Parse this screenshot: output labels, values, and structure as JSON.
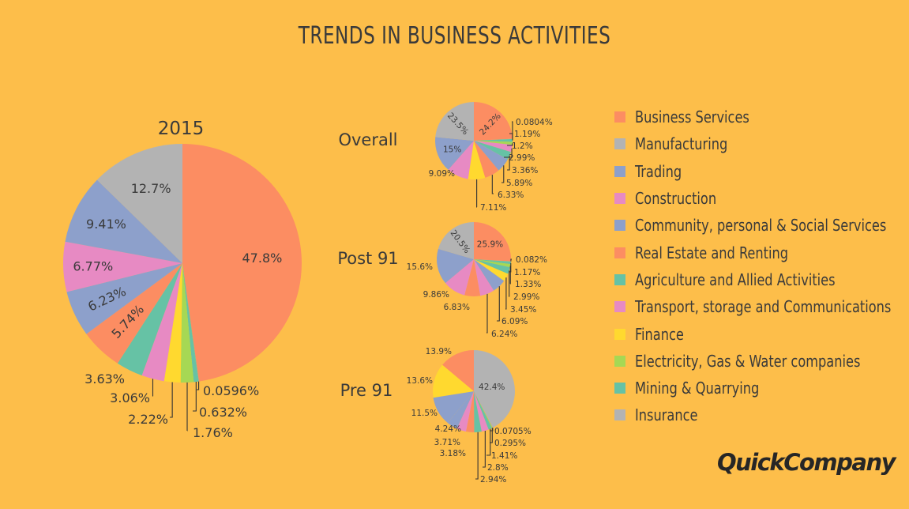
{
  "title": "TRENDS IN BUSINESS ACTIVITIES",
  "brand": "QuickCompany",
  "legend": [
    {
      "label": "Business Services",
      "color": "#FC8D62"
    },
    {
      "label": "Manufacturing",
      "color": "#B3B3B3"
    },
    {
      "label": "Trading",
      "color": "#8DA0CB"
    },
    {
      "label": "Construction",
      "color": "#E78AC3"
    },
    {
      "label": "Community, personal & Social Services",
      "color": "#8DA0CB"
    },
    {
      "label": "Real Estate and Renting",
      "color": "#FC8D62"
    },
    {
      "label": "Agriculture and Allied Activities",
      "color": "#66C2A5"
    },
    {
      "label": "Transport, storage and Communications",
      "color": "#E78AC3"
    },
    {
      "label": "Finance",
      "color": "#FFD92F"
    },
    {
      "label": "Electricity, Gas & Water companies",
      "color": "#A6D854"
    },
    {
      "label": "Mining & Quarrying",
      "color": "#66C2A5"
    },
    {
      "label": "Insurance",
      "color": "#B3B3B3"
    }
  ],
  "chart_data": [
    {
      "type": "pie",
      "title": "2015",
      "slices": [
        {
          "value": 47.8,
          "label": "47.8%",
          "color": "#FC8D62"
        },
        {
          "value": 0.0596,
          "label": "0.0596%",
          "color": "#66C2A5"
        },
        {
          "value": 0.632,
          "label": "0.632%",
          "color": "#66C2A5"
        },
        {
          "value": 1.76,
          "label": "1.76%",
          "color": "#A6D854"
        },
        {
          "value": 2.22,
          "label": "2.22%",
          "color": "#FFD92F"
        },
        {
          "value": 3.06,
          "label": "3.06%",
          "color": "#E78AC3"
        },
        {
          "value": 3.63,
          "label": "3.63%",
          "color": "#66C2A5"
        },
        {
          "value": 5.74,
          "label": "5.74%",
          "color": "#FC8D62"
        },
        {
          "value": 6.23,
          "label": "6.23%",
          "color": "#8DA0CB"
        },
        {
          "value": 6.77,
          "label": "6.77%",
          "color": "#E78AC3"
        },
        {
          "value": 9.41,
          "label": "9.41%",
          "color": "#8DA0CB"
        },
        {
          "value": 12.7,
          "label": "12.7%",
          "color": "#B3B3B3"
        }
      ]
    },
    {
      "type": "pie",
      "title": "Overall",
      "slices": [
        {
          "value": 24.2,
          "label": "24.2%",
          "color": "#FC8D62"
        },
        {
          "value": 0.0804,
          "label": "0.0804%",
          "color": "#B3B3B3"
        },
        {
          "value": 1.19,
          "label": "1.19%",
          "color": "#66C2A5"
        },
        {
          "value": 1.2,
          "label": "1.2%",
          "color": "#A6D854"
        },
        {
          "value": 2.99,
          "label": "2.99%",
          "color": "#E78AC3"
        },
        {
          "value": 3.36,
          "label": "3.36%",
          "color": "#66C2A5"
        },
        {
          "value": 5.89,
          "label": "5.89%",
          "color": "#8DA0CB"
        },
        {
          "value": 6.33,
          "label": "6.33%",
          "color": "#FC8D62"
        },
        {
          "value": 7.11,
          "label": "7.11%",
          "color": "#FFD92F"
        },
        {
          "value": 9.09,
          "label": "9.09%",
          "color": "#E78AC3"
        },
        {
          "value": 15,
          "label": "15%",
          "color": "#8DA0CB"
        },
        {
          "value": 23.5,
          "label": "23.5%",
          "color": "#B3B3B3"
        }
      ]
    },
    {
      "type": "pie",
      "title": "Post 91",
      "slices": [
        {
          "value": 25.9,
          "label": "25.9%",
          "color": "#FC8D62"
        },
        {
          "value": 0.082,
          "label": "0.082%",
          "color": "#B3B3B3"
        },
        {
          "value": 1.17,
          "label": "1.17%",
          "color": "#66C2A5"
        },
        {
          "value": 1.33,
          "label": "1.33%",
          "color": "#A6D854"
        },
        {
          "value": 2.99,
          "label": "2.99%",
          "color": "#66C2A5"
        },
        {
          "value": 3.45,
          "label": "3.45%",
          "color": "#FFD92F"
        },
        {
          "value": 6.09,
          "label": "6.09%",
          "color": "#8DA0CB"
        },
        {
          "value": 6.24,
          "label": "6.24%",
          "color": "#E78AC3"
        },
        {
          "value": 6.83,
          "label": "6.83%",
          "color": "#FC8D62"
        },
        {
          "value": 9.86,
          "label": "9.86%",
          "color": "#E78AC3"
        },
        {
          "value": 15.6,
          "label": "15.6%",
          "color": "#8DA0CB"
        },
        {
          "value": 20.5,
          "label": "20.5%",
          "color": "#B3B3B3"
        }
      ]
    },
    {
      "type": "pie",
      "title": "Pre 91",
      "slices": [
        {
          "value": 42.4,
          "label": "42.4%",
          "color": "#B3B3B3"
        },
        {
          "value": 0.0705,
          "label": "0.0705%",
          "color": "#FC8D62"
        },
        {
          "value": 0.295,
          "label": "0.295%",
          "color": "#A6D854"
        },
        {
          "value": 1.41,
          "label": "1.41%",
          "color": "#66C2A5"
        },
        {
          "value": 2.8,
          "label": "2.8%",
          "color": "#E78AC3"
        },
        {
          "value": 2.94,
          "label": "2.94%",
          "color": "#66C2A5"
        },
        {
          "value": 3.18,
          "label": "3.18%",
          "color": "#FC8D62"
        },
        {
          "value": 3.71,
          "label": "3.71%",
          "color": "#E78AC3"
        },
        {
          "value": 4.24,
          "label": "4.24%",
          "color": "#8DA0CB"
        },
        {
          "value": 11.5,
          "label": "11.5%",
          "color": "#8DA0CB"
        },
        {
          "value": 13.6,
          "label": "13.6%",
          "color": "#FFD92F"
        },
        {
          "value": 13.9,
          "label": "13.9%",
          "color": "#FC8D62"
        }
      ]
    }
  ]
}
